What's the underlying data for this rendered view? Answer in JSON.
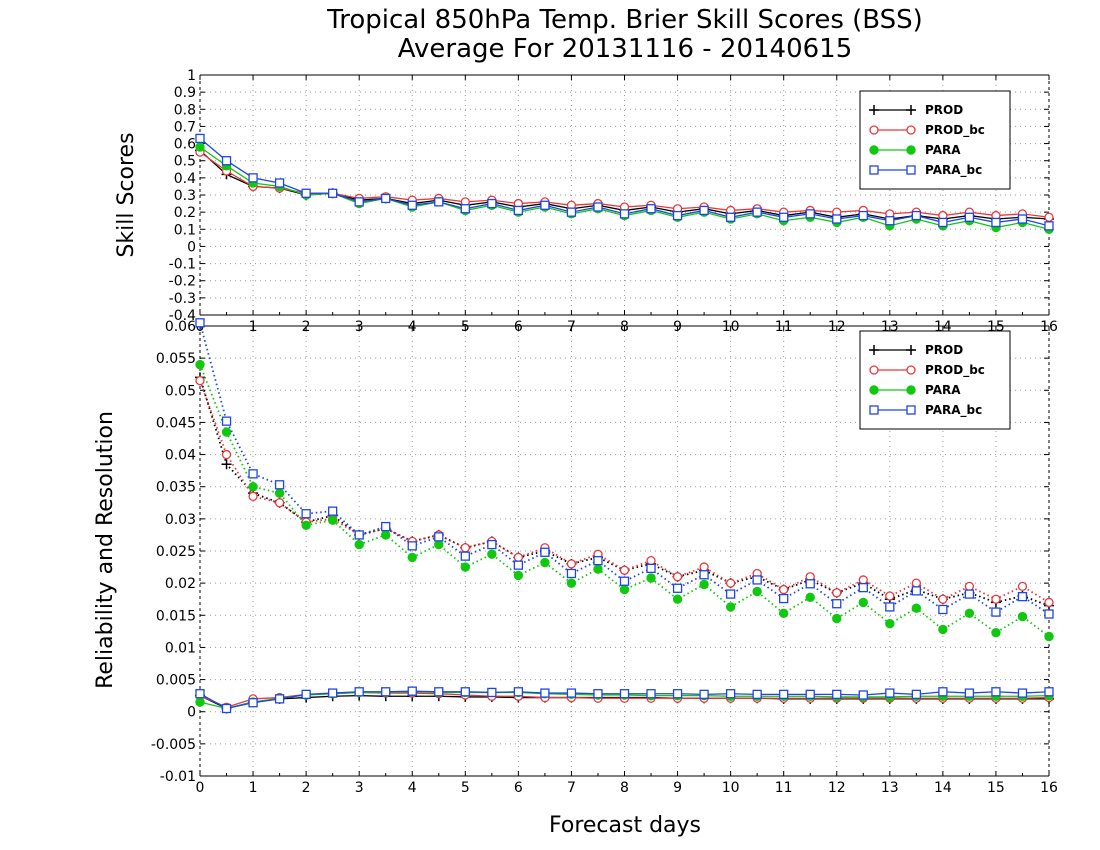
{
  "title_line1": "Tropical 850hPa Temp. Brier Skill Scores (BSS)",
  "title_line2": "Average For 20131116 - 20140615",
  "top_ylabel": "Skill Scores",
  "bottom_ylabel": "Reliability and Resolution",
  "xlabel": "Forecast days",
  "colors": {
    "PROD": "#000000",
    "PROD_bc": "#e8383d",
    "PARA": "#10c810",
    "PARA_bc": "#1e46e6"
  },
  "chart_data": [
    {
      "type": "line",
      "panel": "top",
      "ylabel": "Skill Scores",
      "xlim": [
        0,
        16
      ],
      "ylim": [
        -0.4,
        1
      ],
      "grid": true,
      "legend": "top-right",
      "x": [
        0,
        0.5,
        1,
        1.5,
        2,
        2.5,
        3,
        3.5,
        4,
        4.5,
        5,
        5.5,
        6,
        6.5,
        7,
        7.5,
        8,
        8.5,
        9,
        9.5,
        10,
        10.5,
        11,
        11.5,
        12,
        12.5,
        13,
        13.5,
        14,
        14.5,
        15,
        15.5,
        16
      ],
      "x_ticks": [
        "0",
        "1",
        "2",
        "3",
        "4",
        "5",
        "6",
        "7",
        "8",
        "9",
        "10",
        "11",
        "12",
        "13",
        "14",
        "15",
        "16"
      ],
      "y_ticks": [
        "-0.4",
        "-0.3",
        "-0.2",
        "-0.1",
        "0",
        "0.1",
        "0.2",
        "0.3",
        "0.4",
        "0.5",
        "0.6",
        "0.7",
        "0.8",
        "0.9",
        "1"
      ],
      "series": [
        {
          "name": "PROD",
          "marker": "plus",
          "values": [
            0.56,
            0.42,
            0.35,
            0.34,
            0.3,
            0.31,
            0.27,
            0.28,
            0.25,
            0.27,
            0.24,
            0.26,
            0.23,
            0.25,
            0.22,
            0.24,
            0.21,
            0.23,
            0.2,
            0.22,
            0.19,
            0.21,
            0.18,
            0.2,
            0.17,
            0.19,
            0.16,
            0.18,
            0.16,
            0.18,
            0.16,
            0.17,
            0.16
          ]
        },
        {
          "name": "PROD_bc",
          "marker": "circle-open",
          "values": [
            0.55,
            0.44,
            0.35,
            0.34,
            0.31,
            0.31,
            0.28,
            0.29,
            0.27,
            0.28,
            0.26,
            0.27,
            0.25,
            0.26,
            0.24,
            0.25,
            0.23,
            0.24,
            0.22,
            0.23,
            0.21,
            0.22,
            0.2,
            0.21,
            0.2,
            0.21,
            0.19,
            0.2,
            0.18,
            0.2,
            0.18,
            0.19,
            0.17
          ]
        },
        {
          "name": "PARA",
          "marker": "circle-filled",
          "values": [
            0.58,
            0.47,
            0.37,
            0.35,
            0.3,
            0.31,
            0.25,
            0.28,
            0.23,
            0.26,
            0.21,
            0.24,
            0.2,
            0.23,
            0.19,
            0.22,
            0.18,
            0.21,
            0.17,
            0.2,
            0.16,
            0.19,
            0.15,
            0.17,
            0.14,
            0.17,
            0.12,
            0.16,
            0.12,
            0.15,
            0.11,
            0.14,
            0.1
          ]
        },
        {
          "name": "PARA_bc",
          "marker": "square-open",
          "values": [
            0.63,
            0.5,
            0.4,
            0.37,
            0.31,
            0.31,
            0.26,
            0.28,
            0.24,
            0.26,
            0.22,
            0.25,
            0.21,
            0.24,
            0.2,
            0.23,
            0.19,
            0.22,
            0.18,
            0.21,
            0.17,
            0.2,
            0.17,
            0.19,
            0.16,
            0.18,
            0.15,
            0.18,
            0.14,
            0.17,
            0.14,
            0.16,
            0.12
          ]
        }
      ]
    },
    {
      "type": "line",
      "panel": "bottom",
      "ylabel": "Reliability and Resolution",
      "xlabel": "Forecast days",
      "xlim": [
        0,
        16
      ],
      "ylim": [
        -0.01,
        0.06
      ],
      "grid": true,
      "legend": "top-right",
      "x": [
        0,
        0.5,
        1,
        1.5,
        2,
        2.5,
        3,
        3.5,
        4,
        4.5,
        5,
        5.5,
        6,
        6.5,
        7,
        7.5,
        8,
        8.5,
        9,
        9.5,
        10,
        10.5,
        11,
        11.5,
        12,
        12.5,
        13,
        13.5,
        14,
        14.5,
        15,
        15.5,
        16
      ],
      "x_ticks": [
        "0",
        "1",
        "2",
        "3",
        "4",
        "5",
        "6",
        "7",
        "8",
        "9",
        "10",
        "11",
        "12",
        "13",
        "14",
        "15",
        "16"
      ],
      "y_ticks": [
        "-0.01",
        "-0.005",
        "0",
        "0.005",
        "0.01",
        "0.015",
        "0.02",
        "0.025",
        "0.03",
        "0.035",
        "0.04",
        "0.045",
        "0.05",
        "0.055",
        "0.06"
      ],
      "series": [
        {
          "name": "PROD",
          "marker": "plus",
          "line": "dotted",
          "values": [
            0.052,
            0.0385,
            0.034,
            0.0325,
            0.0295,
            0.0305,
            0.0275,
            0.0285,
            0.0265,
            0.0275,
            0.0255,
            0.0265,
            0.024,
            0.025,
            0.023,
            0.024,
            0.022,
            0.023,
            0.021,
            0.022,
            0.02,
            0.021,
            0.019,
            0.0205,
            0.0185,
            0.02,
            0.0175,
            0.019,
            0.0175,
            0.0185,
            0.017,
            0.018,
            0.0165
          ]
        },
        {
          "name": "PROD_bc",
          "marker": "circle-open",
          "line": "dotted",
          "values": [
            0.0515,
            0.04,
            0.0335,
            0.0325,
            0.0295,
            0.03,
            0.0275,
            0.0285,
            0.0265,
            0.0275,
            0.0255,
            0.0265,
            0.024,
            0.0255,
            0.023,
            0.0245,
            0.022,
            0.0235,
            0.021,
            0.0225,
            0.02,
            0.0215,
            0.019,
            0.021,
            0.0185,
            0.0205,
            0.018,
            0.02,
            0.0175,
            0.0195,
            0.0175,
            0.0195,
            0.017
          ]
        },
        {
          "name": "PARA",
          "marker": "circle-filled",
          "line": "dotted",
          "values": [
            0.054,
            0.0435,
            0.035,
            0.034,
            0.029,
            0.0298,
            0.026,
            0.0275,
            0.024,
            0.026,
            0.0225,
            0.0245,
            0.0212,
            0.0232,
            0.02,
            0.0222,
            0.019,
            0.0208,
            0.0175,
            0.0198,
            0.0163,
            0.0187,
            0.0153,
            0.0178,
            0.0145,
            0.017,
            0.0137,
            0.0161,
            0.0128,
            0.0153,
            0.0123,
            0.0148,
            0.0117
          ]
        },
        {
          "name": "PARA_bc",
          "marker": "square-open",
          "line": "dotted",
          "values": [
            0.0605,
            0.0452,
            0.037,
            0.0353,
            0.0308,
            0.0312,
            0.0275,
            0.0288,
            0.0258,
            0.0272,
            0.0242,
            0.026,
            0.0228,
            0.0248,
            0.0215,
            0.0235,
            0.0203,
            0.0223,
            0.0192,
            0.0213,
            0.0183,
            0.0205,
            0.0176,
            0.0199,
            0.0168,
            0.0193,
            0.0163,
            0.0188,
            0.0159,
            0.0183,
            0.0155,
            0.0179,
            0.0152
          ]
        },
        {
          "name": "PROD",
          "group": "lower",
          "marker": "plus",
          "line": "solid",
          "values": [
            0.0025,
            0.0005,
            0.0015,
            0.002,
            0.0022,
            0.0024,
            0.0025,
            0.0024,
            0.0024,
            0.0024,
            0.0023,
            0.0023,
            0.0022,
            0.0022,
            0.0022,
            0.0022,
            0.0022,
            0.0022,
            0.0021,
            0.0021,
            0.0021,
            0.0021,
            0.002,
            0.002,
            0.002,
            0.002,
            0.002,
            0.002,
            0.002,
            0.002,
            0.002,
            0.002,
            0.002
          ]
        },
        {
          "name": "PROD_bc",
          "group": "lower",
          "marker": "circle-open",
          "line": "solid",
          "values": [
            0.0025,
            0.0007,
            0.002,
            0.0022,
            0.0027,
            0.0028,
            0.003,
            0.0029,
            0.0029,
            0.0028,
            0.0026,
            0.0024,
            0.0024,
            0.0022,
            0.0022,
            0.0021,
            0.0021,
            0.0021,
            0.0021,
            0.0021,
            0.0021,
            0.0021,
            0.0021,
            0.0021,
            0.0021,
            0.0021,
            0.0021,
            0.0021,
            0.0021,
            0.0021,
            0.0021,
            0.0021,
            0.0022
          ]
        },
        {
          "name": "PARA",
          "group": "lower",
          "marker": "circle-filled",
          "line": "solid",
          "values": [
            0.0015,
            0.0005,
            0.0015,
            0.0021,
            0.0026,
            0.0028,
            0.003,
            0.003,
            0.0031,
            0.003,
            0.003,
            0.003,
            0.003,
            0.0028,
            0.0027,
            0.0026,
            0.0026,
            0.0025,
            0.0025,
            0.0025,
            0.0024,
            0.0024,
            0.0024,
            0.0024,
            0.0023,
            0.0023,
            0.0023,
            0.0024,
            0.0024,
            0.0024,
            0.0024,
            0.0024,
            0.0025
          ]
        },
        {
          "name": "PARA_bc",
          "group": "lower",
          "marker": "square-open",
          "line": "solid",
          "values": [
            0.0028,
            0.0005,
            0.0014,
            0.002,
            0.0027,
            0.0029,
            0.0031,
            0.0031,
            0.0032,
            0.0031,
            0.0031,
            0.003,
            0.0031,
            0.0029,
            0.0029,
            0.0028,
            0.0028,
            0.0028,
            0.0028,
            0.0027,
            0.0028,
            0.0027,
            0.0027,
            0.0027,
            0.0027,
            0.0026,
            0.0029,
            0.0027,
            0.0031,
            0.0029,
            0.0031,
            0.0029,
            0.0031
          ]
        }
      ]
    }
  ]
}
